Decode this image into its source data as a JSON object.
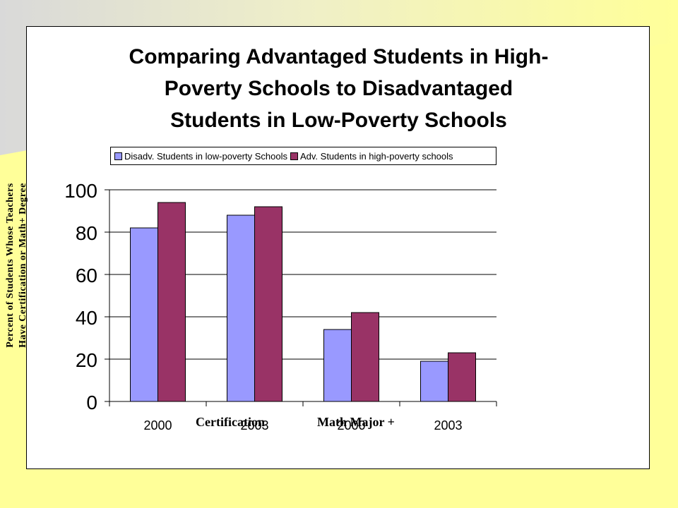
{
  "chart_data": {
    "type": "bar",
    "title_lines": [
      "Comparing Advantaged Students in High-",
      "Poverty Schools to Disadvantaged",
      "Students in Low-Poverty Schools"
    ],
    "ylabel_lines": [
      "Percent of Students Whose Teachers",
      "Have Certification or Math+ Degree"
    ],
    "categories": [
      "2000",
      "2003",
      "2000",
      "2003"
    ],
    "groups": [
      "Certification",
      "Math Major +"
    ],
    "series": [
      {
        "name": "Disadv. Students in low-poverty Schools",
        "color": "#9999FF",
        "values": [
          82,
          88,
          34,
          19
        ]
      },
      {
        "name": "Adv. Students in high-poverty schools",
        "color": "#993366",
        "values": [
          94,
          92,
          42,
          23
        ]
      }
    ],
    "ylim": [
      0,
      100
    ],
    "yticks": [
      0,
      20,
      40,
      60,
      80,
      100
    ],
    "grid": true,
    "legend_position": "top"
  }
}
